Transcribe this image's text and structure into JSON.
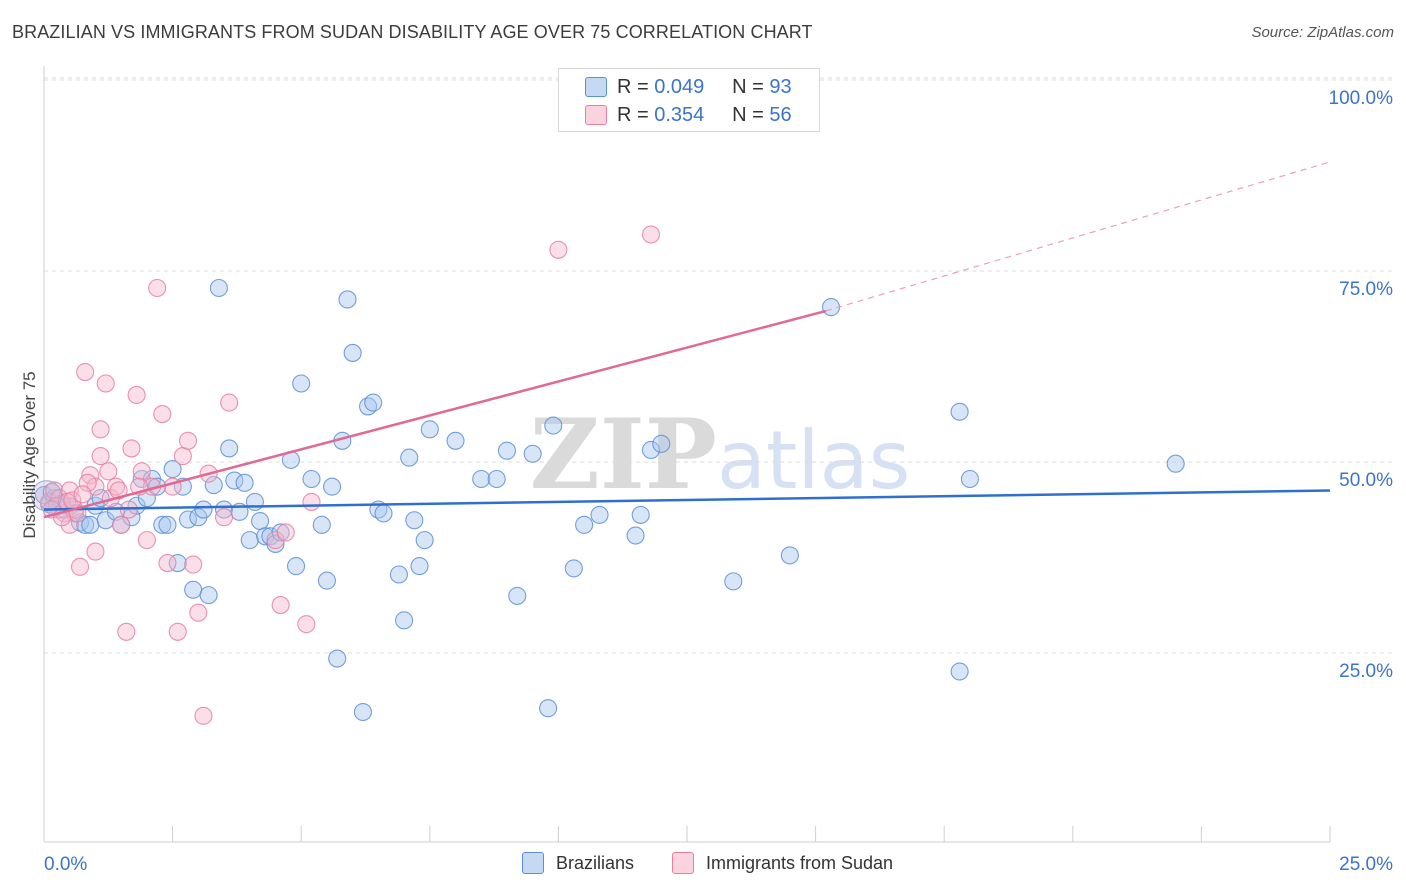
{
  "title": "BRAZILIAN VS IMMIGRANTS FROM SUDAN DISABILITY AGE OVER 75 CORRELATION CHART",
  "source": "Source: ZipAtlas.com",
  "watermark": "ZIPatlas",
  "legend_top": {
    "rows": [
      {
        "r_label": "R =",
        "r_value": "0.049",
        "n_label": "N =",
        "n_value": "93",
        "color": "#a9c6ee"
      },
      {
        "r_label": "R =",
        "r_value": "0.354",
        "n_label": "N =",
        "n_value": "56",
        "color": "#f5b8cb"
      }
    ]
  },
  "legend_bottom": [
    {
      "label": "Brazilians",
      "color": "#a9c6ee"
    },
    {
      "label": "Immigrants from Sudan",
      "color": "#f5b8cb"
    }
  ],
  "chart_data": {
    "type": "scatter",
    "title": "BRAZILIAN VS IMMIGRANTS FROM SUDAN DISABILITY AGE OVER 75 CORRELATION CHART",
    "xlabel": "",
    "ylabel": "Disability Age Over 75",
    "xlim": [
      0,
      25
    ],
    "ylim": [
      0,
      105
    ],
    "x_tick_labels": [
      "0.0%",
      "25.0%"
    ],
    "y_tick_labels": [
      "25.0%",
      "50.0%",
      "75.0%",
      "100.0%"
    ],
    "y_ticks": [
      25,
      50,
      75,
      100
    ],
    "grid": true,
    "series": [
      {
        "name": "Brazilians",
        "color": "#5b8fd6",
        "fill": "#a9c6ee",
        "trend": {
          "x0": 0,
          "y0": 46.0,
          "x1": 25,
          "y1": 48.5
        },
        "points": [
          [
            0.0,
            47.9
          ],
          [
            0.1,
            46.7
          ],
          [
            0.2,
            46.3
          ],
          [
            0.2,
            47.5
          ],
          [
            0.3,
            46.0
          ],
          [
            0.4,
            46.0
          ],
          [
            0.5,
            46.4
          ],
          [
            0.6,
            45.5
          ],
          [
            0.7,
            44.3
          ],
          [
            0.8,
            44.0
          ],
          [
            0.9,
            44.0
          ],
          [
            1.0,
            46.5
          ],
          [
            1.2,
            44.6
          ],
          [
            1.4,
            45.7
          ],
          [
            1.5,
            44.0
          ],
          [
            1.7,
            45.0
          ],
          [
            1.8,
            46.5
          ],
          [
            1.9,
            50.0
          ],
          [
            2.0,
            47.5
          ],
          [
            2.1,
            50.0
          ],
          [
            2.2,
            49.0
          ],
          [
            2.3,
            44.0
          ],
          [
            2.4,
            44.0
          ],
          [
            2.5,
            51.3
          ],
          [
            2.6,
            39.0
          ],
          [
            2.7,
            49.0
          ],
          [
            2.8,
            44.7
          ],
          [
            2.9,
            35.5
          ],
          [
            3.0,
            45.0
          ],
          [
            3.1,
            46.0
          ],
          [
            3.2,
            34.8
          ],
          [
            3.3,
            49.2
          ],
          [
            3.4,
            75.0
          ],
          [
            3.5,
            46.0
          ],
          [
            3.6,
            54.0
          ],
          [
            3.7,
            49.8
          ],
          [
            3.8,
            45.7
          ],
          [
            3.9,
            49.5
          ],
          [
            4.0,
            42.0
          ],
          [
            4.1,
            47.0
          ],
          [
            4.2,
            44.5
          ],
          [
            4.3,
            42.5
          ],
          [
            4.4,
            42.5
          ],
          [
            4.5,
            41.5
          ],
          [
            4.6,
            43.0
          ],
          [
            4.8,
            52.5
          ],
          [
            4.9,
            38.6
          ],
          [
            5.0,
            62.5
          ],
          [
            5.2,
            50.0
          ],
          [
            5.4,
            44.0
          ],
          [
            5.5,
            36.7
          ],
          [
            5.6,
            49.0
          ],
          [
            5.7,
            26.5
          ],
          [
            5.8,
            55.0
          ],
          [
            5.9,
            73.5
          ],
          [
            6.0,
            66.5
          ],
          [
            6.2,
            19.5
          ],
          [
            6.3,
            59.5
          ],
          [
            6.4,
            60.0
          ],
          [
            6.5,
            46.0
          ],
          [
            6.6,
            45.5
          ],
          [
            6.9,
            37.5
          ],
          [
            7.0,
            31.5
          ],
          [
            7.1,
            52.8
          ],
          [
            7.2,
            44.6
          ],
          [
            7.3,
            38.6
          ],
          [
            7.4,
            42.0
          ],
          [
            7.5,
            56.5
          ],
          [
            8.0,
            55.0
          ],
          [
            8.5,
            50.0
          ],
          [
            8.8,
            50.0
          ],
          [
            9.0,
            53.7
          ],
          [
            9.2,
            34.7
          ],
          [
            9.5,
            53.3
          ],
          [
            9.8,
            20.0
          ],
          [
            9.9,
            57.0
          ],
          [
            10.3,
            38.3
          ],
          [
            10.5,
            44.0
          ],
          [
            10.8,
            45.3
          ],
          [
            11.5,
            42.6
          ],
          [
            11.6,
            45.3
          ],
          [
            11.8,
            53.8
          ],
          [
            12.0,
            54.6
          ],
          [
            13.4,
            36.6
          ],
          [
            14.5,
            40.0
          ],
          [
            15.3,
            72.5
          ],
          [
            17.8,
            24.8
          ],
          [
            17.8,
            58.8
          ],
          [
            18.0,
            50.0
          ],
          [
            22.0,
            52.0
          ],
          [
            0.15,
            48.3
          ],
          [
            0.35,
            46.8
          ],
          [
            1.1,
            47.5
          ]
        ]
      },
      {
        "name": "Immigrants from Sudan",
        "color": "#e77fa1",
        "fill": "#f5b8cb",
        "trend": {
          "x0": 0,
          "y0": 45.0,
          "x1": 15.2,
          "y1": 72.0
        },
        "trend_ext": {
          "x0": 15.2,
          "y0": 72.0,
          "x1": 25,
          "y1": 91.5
        },
        "points": [
          [
            0.1,
            47.0
          ],
          [
            0.2,
            48.5
          ],
          [
            0.3,
            47.5
          ],
          [
            0.4,
            45.5
          ],
          [
            0.5,
            44.0
          ],
          [
            0.5,
            48.5
          ],
          [
            0.6,
            46.0
          ],
          [
            0.7,
            38.5
          ],
          [
            0.8,
            64.0
          ],
          [
            0.9,
            50.5
          ],
          [
            1.0,
            49.0
          ],
          [
            1.0,
            40.5
          ],
          [
            1.1,
            56.5
          ],
          [
            1.1,
            53.0
          ],
          [
            1.2,
            62.5
          ],
          [
            1.3,
            47.5
          ],
          [
            1.4,
            49.0
          ],
          [
            1.5,
            44.0
          ],
          [
            1.6,
            30.0
          ],
          [
            1.7,
            54.0
          ],
          [
            1.8,
            61.0
          ],
          [
            1.9,
            51.0
          ],
          [
            2.0,
            42.0
          ],
          [
            2.1,
            49.0
          ],
          [
            2.2,
            75.0
          ],
          [
            2.3,
            58.5
          ],
          [
            2.4,
            39.0
          ],
          [
            2.5,
            49.0
          ],
          [
            2.6,
            30.0
          ],
          [
            2.7,
            53.0
          ],
          [
            2.8,
            55.0
          ],
          [
            2.9,
            38.8
          ],
          [
            3.0,
            32.5
          ],
          [
            3.1,
            19.0
          ],
          [
            3.2,
            50.7
          ],
          [
            3.5,
            45.0
          ],
          [
            3.6,
            60.0
          ],
          [
            4.5,
            42.0
          ],
          [
            4.6,
            33.5
          ],
          [
            4.7,
            43.0
          ],
          [
            5.1,
            31.0
          ],
          [
            5.2,
            47.0
          ],
          [
            10.0,
            80.0
          ],
          [
            11.8,
            82.0
          ],
          [
            0.25,
            46.5
          ],
          [
            0.45,
            47.0
          ],
          [
            0.65,
            45.5
          ],
          [
            0.85,
            49.5
          ],
          [
            1.25,
            51.0
          ],
          [
            1.45,
            48.5
          ],
          [
            1.65,
            46.0
          ],
          [
            1.85,
            49.0
          ],
          [
            0.15,
            46.0
          ],
          [
            0.35,
            45.0
          ],
          [
            0.55,
            47.2
          ],
          [
            0.75,
            48.0
          ]
        ]
      }
    ]
  }
}
